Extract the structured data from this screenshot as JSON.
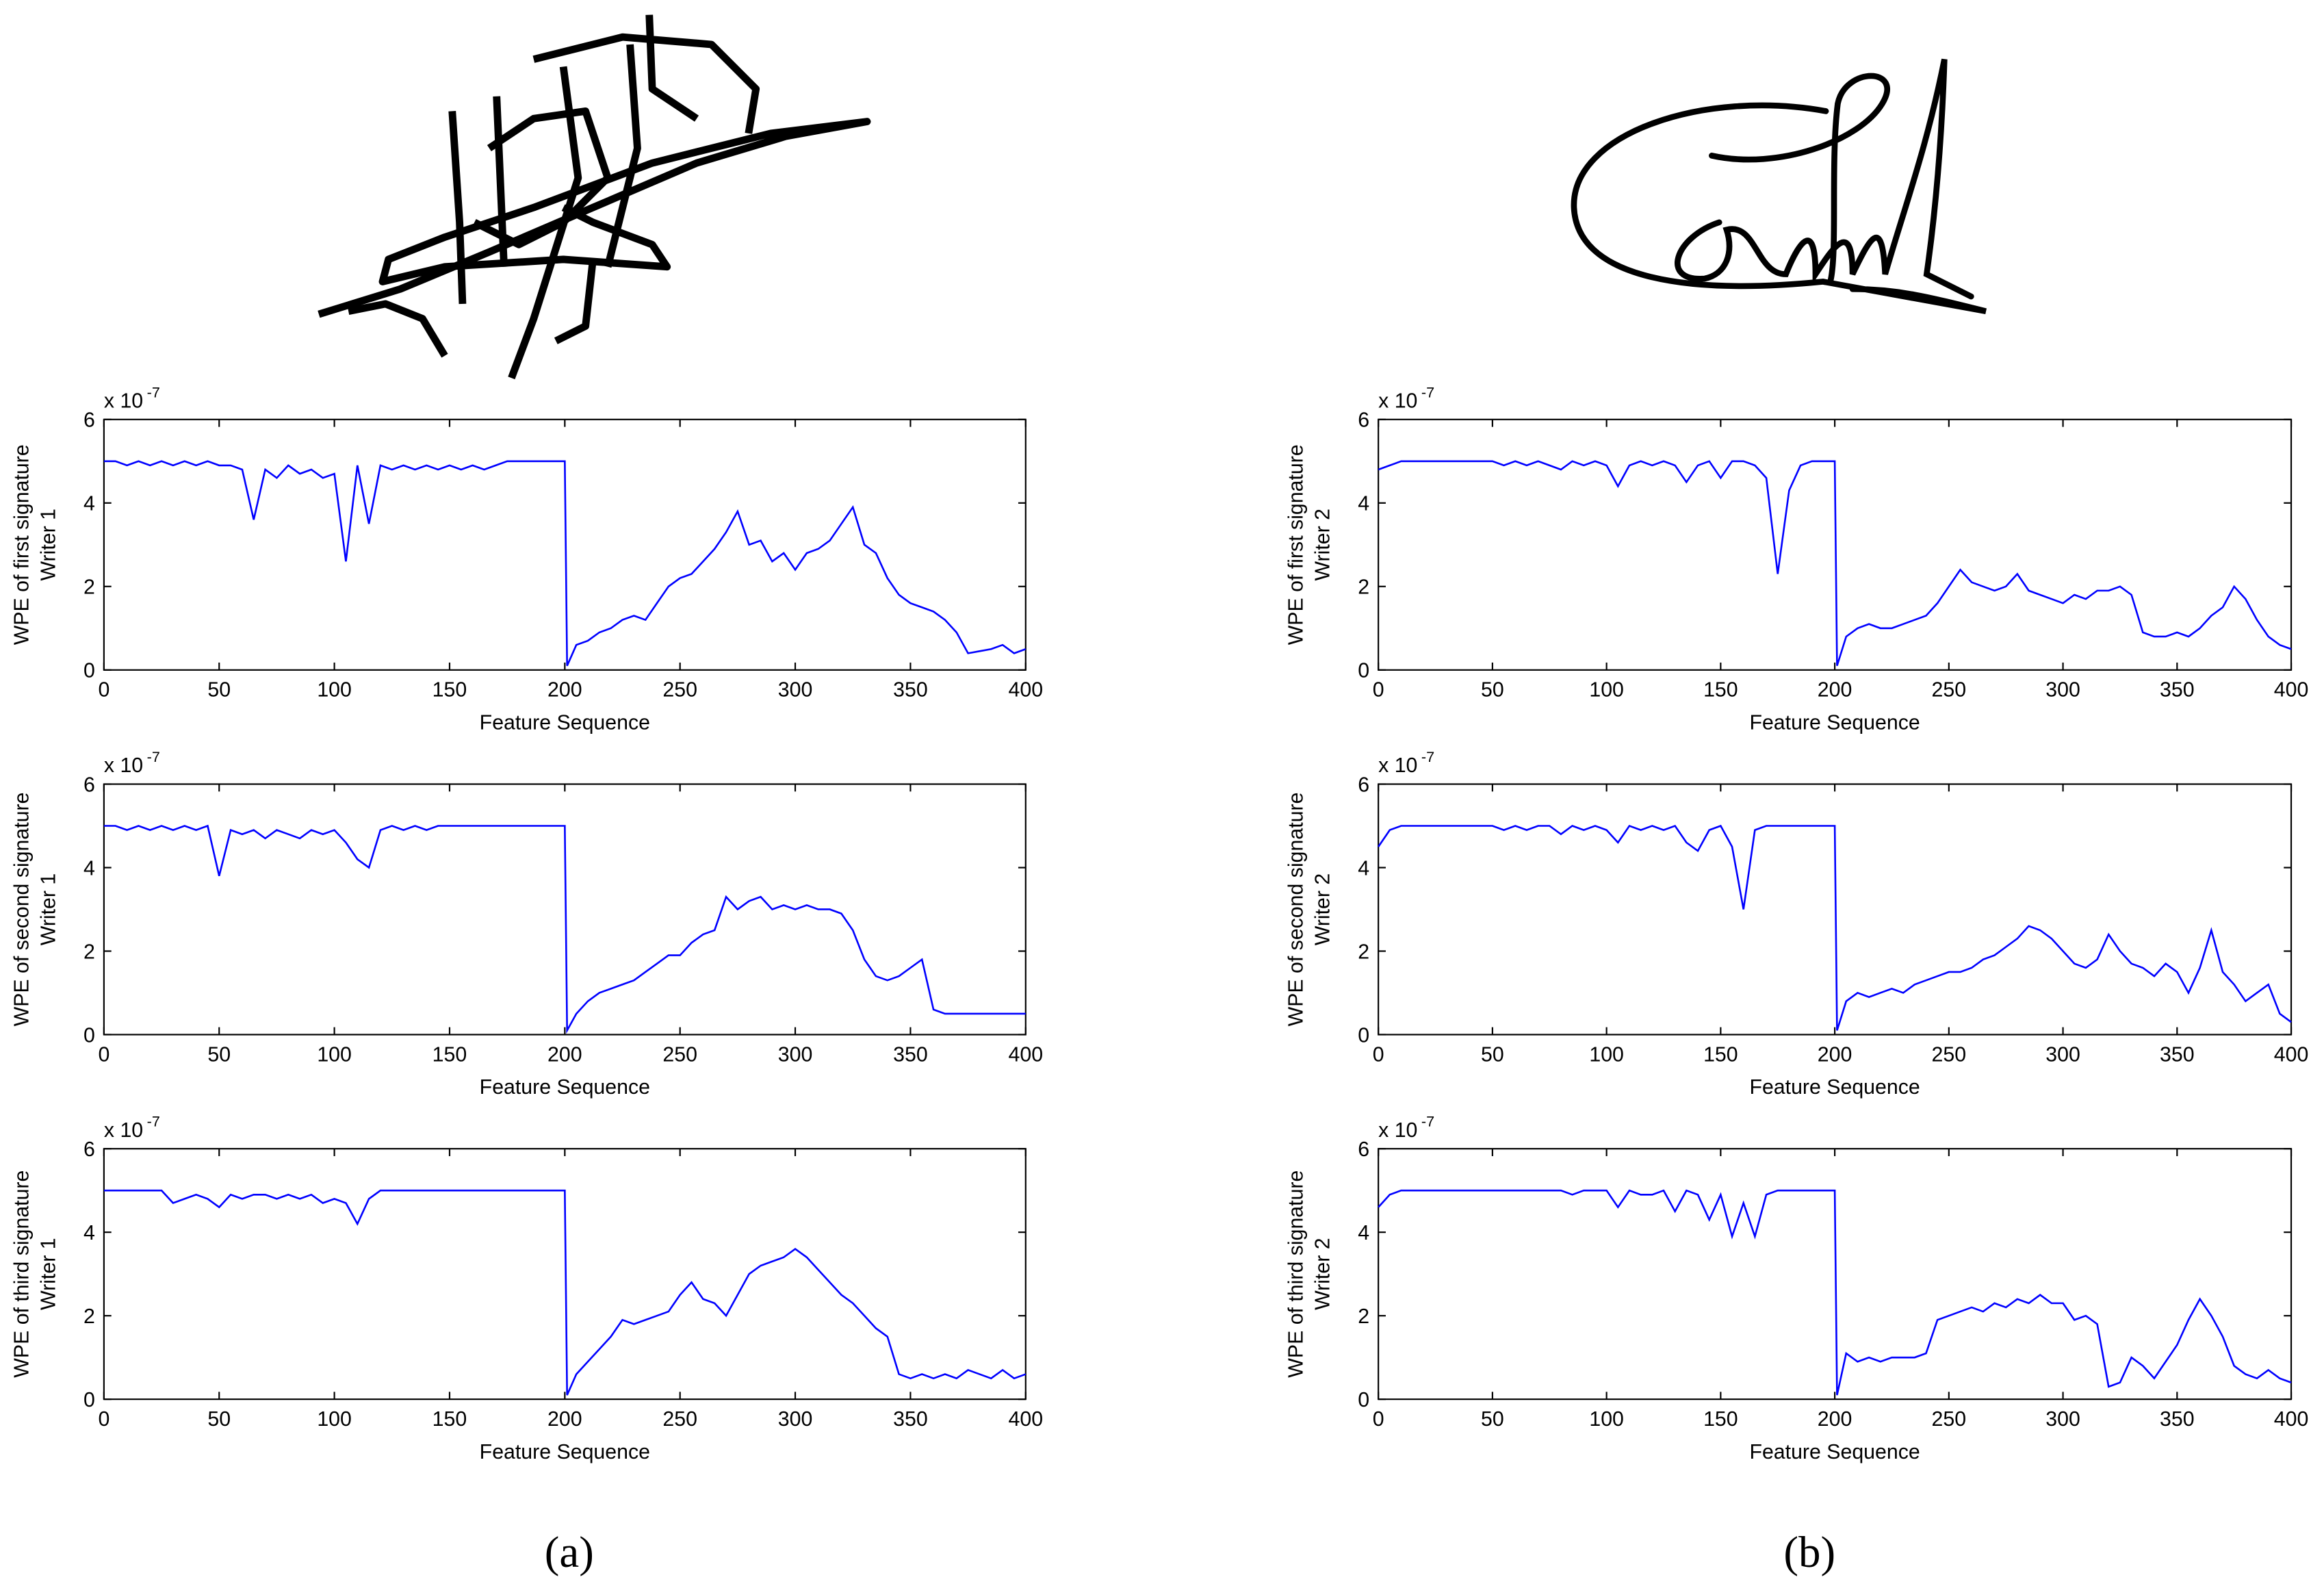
{
  "chart_data": [
    {
      "type": "line",
      "color": "#0000ff",
      "y_label": [
        "WPE  of first signature",
        "Writer 1"
      ],
      "x_label": "Feature Sequence",
      "y_scale_label": "x 10",
      "y_scale_exponent": "-7",
      "xlim": [
        0,
        400
      ],
      "ylim": [
        0,
        6
      ],
      "xticks": [
        0,
        50,
        100,
        150,
        200,
        250,
        300,
        350,
        400
      ],
      "yticks": [
        0,
        2,
        4,
        6
      ],
      "x": [
        0,
        5,
        10,
        15,
        20,
        25,
        30,
        35,
        40,
        45,
        50,
        55,
        60,
        65,
        70,
        75,
        80,
        85,
        90,
        95,
        100,
        105,
        110,
        115,
        120,
        125,
        130,
        135,
        140,
        145,
        150,
        155,
        160,
        165,
        170,
        175,
        180,
        185,
        190,
        195,
        200,
        201,
        205,
        210,
        215,
        220,
        225,
        230,
        235,
        240,
        245,
        250,
        255,
        260,
        265,
        270,
        275,
        280,
        285,
        290,
        295,
        300,
        305,
        310,
        315,
        320,
        325,
        330,
        335,
        340,
        345,
        350,
        355,
        360,
        365,
        370,
        375,
        380,
        385,
        390,
        395,
        400
      ],
      "values": [
        5,
        5,
        4.9,
        5,
        4.9,
        5,
        4.9,
        5,
        4.9,
        5,
        4.9,
        4.9,
        4.8,
        3.6,
        4.8,
        4.6,
        4.9,
        4.7,
        4.8,
        4.6,
        4.7,
        2.6,
        4.9,
        3.5,
        4.9,
        4.8,
        4.9,
        4.8,
        4.9,
        4.8,
        4.9,
        4.8,
        4.9,
        4.8,
        4.9,
        5,
        5,
        5,
        5,
        5,
        5,
        0.1,
        0.6,
        0.7,
        0.9,
        1.0,
        1.2,
        1.3,
        1.2,
        1.6,
        2.0,
        2.2,
        2.3,
        2.6,
        2.9,
        3.3,
        3.8,
        3.0,
        3.1,
        2.6,
        2.8,
        2.4,
        2.8,
        2.9,
        3.1,
        3.5,
        3.9,
        3.0,
        2.8,
        2.2,
        1.8,
        1.6,
        1.5,
        1.4,
        1.2,
        0.9,
        0.4,
        0.45,
        0.5,
        0.6,
        0.4,
        0.5
      ]
    },
    {
      "type": "line",
      "color": "#0000ff",
      "y_label": [
        "WPE  of first signature",
        "Writer 2"
      ],
      "x_label": "Feature Sequence",
      "y_scale_label": "x 10",
      "y_scale_exponent": "-7",
      "xlim": [
        0,
        400
      ],
      "ylim": [
        0,
        6
      ],
      "xticks": [
        0,
        50,
        100,
        150,
        200,
        250,
        300,
        350,
        400
      ],
      "yticks": [
        0,
        2,
        4,
        6
      ],
      "x": [
        0,
        5,
        10,
        15,
        20,
        25,
        30,
        35,
        40,
        45,
        50,
        55,
        60,
        65,
        70,
        75,
        80,
        85,
        90,
        95,
        100,
        105,
        110,
        115,
        120,
        125,
        130,
        135,
        140,
        145,
        150,
        155,
        160,
        165,
        170,
        175,
        180,
        185,
        190,
        195,
        200,
        201,
        205,
        210,
        215,
        220,
        225,
        230,
        235,
        240,
        245,
        250,
        255,
        260,
        265,
        270,
        275,
        280,
        285,
        290,
        295,
        300,
        305,
        310,
        315,
        320,
        325,
        330,
        335,
        340,
        345,
        350,
        355,
        360,
        365,
        370,
        375,
        380,
        385,
        390,
        395,
        400
      ],
      "values": [
        4.8,
        4.9,
        5,
        5,
        5,
        5,
        5,
        5,
        5,
        5,
        5,
        4.9,
        5,
        4.9,
        5,
        4.9,
        4.8,
        5,
        4.9,
        5,
        4.9,
        4.4,
        4.9,
        5,
        4.9,
        5,
        4.9,
        4.5,
        4.9,
        5,
        4.6,
        5,
        5,
        4.9,
        4.6,
        2.3,
        4.3,
        4.9,
        5,
        5,
        5,
        0.1,
        0.8,
        1.0,
        1.1,
        1.0,
        1.0,
        1.1,
        1.2,
        1.3,
        1.6,
        2.0,
        2.4,
        2.1,
        2.0,
        1.9,
        2.0,
        2.3,
        1.9,
        1.8,
        1.7,
        1.6,
        1.8,
        1.7,
        1.9,
        1.9,
        2.0,
        1.8,
        0.9,
        0.8,
        0.8,
        0.9,
        0.8,
        1.0,
        1.3,
        1.5,
        2.0,
        1.7,
        1.2,
        0.8,
        0.6,
        0.5
      ]
    },
    {
      "type": "line",
      "color": "#0000ff",
      "y_label": [
        "WPE of second signature",
        "Writer 1"
      ],
      "x_label": "Feature Sequence",
      "y_scale_label": "x 10",
      "y_scale_exponent": "-7",
      "xlim": [
        0,
        400
      ],
      "ylim": [
        0,
        6
      ],
      "xticks": [
        0,
        50,
        100,
        150,
        200,
        250,
        300,
        350,
        400
      ],
      "yticks": [
        0,
        2,
        4,
        6
      ],
      "x": [
        0,
        5,
        10,
        15,
        20,
        25,
        30,
        35,
        40,
        45,
        50,
        55,
        60,
        65,
        70,
        75,
        80,
        85,
        90,
        95,
        100,
        105,
        110,
        115,
        120,
        125,
        130,
        135,
        140,
        145,
        150,
        155,
        160,
        165,
        170,
        175,
        180,
        185,
        190,
        195,
        200,
        201,
        205,
        210,
        215,
        220,
        225,
        230,
        235,
        240,
        245,
        250,
        255,
        260,
        265,
        270,
        275,
        280,
        285,
        290,
        295,
        300,
        305,
        310,
        315,
        320,
        325,
        330,
        335,
        340,
        345,
        350,
        355,
        360,
        365,
        370,
        375,
        380,
        385,
        390,
        395,
        400
      ],
      "values": [
        5,
        5,
        4.9,
        5,
        4.9,
        5,
        4.9,
        5,
        4.9,
        5,
        3.8,
        4.9,
        4.8,
        4.9,
        4.7,
        4.9,
        4.8,
        4.7,
        4.9,
        4.8,
        4.9,
        4.6,
        4.2,
        4.0,
        4.9,
        5,
        4.9,
        5,
        4.9,
        5,
        5,
        5,
        5,
        5,
        5,
        5,
        5,
        5,
        5,
        5,
        5,
        0.1,
        0.5,
        0.8,
        1.0,
        1.1,
        1.2,
        1.3,
        1.5,
        1.7,
        1.9,
        1.9,
        2.2,
        2.4,
        2.5,
        3.3,
        3.0,
        3.2,
        3.3,
        3.0,
        3.1,
        3.0,
        3.1,
        3.0,
        3.0,
        2.9,
        2.5,
        1.8,
        1.4,
        1.3,
        1.4,
        1.6,
        1.8,
        0.6,
        0.5,
        0.5,
        0.5,
        0.5,
        0.5,
        0.5,
        0.5,
        0.5
      ]
    },
    {
      "type": "line",
      "color": "#0000ff",
      "y_label": [
        "WPE  of second signature",
        "Writer 2"
      ],
      "x_label": "Feature Sequence",
      "y_scale_label": "x 10",
      "y_scale_exponent": "-7",
      "xlim": [
        0,
        400
      ],
      "ylim": [
        0,
        6
      ],
      "xticks": [
        0,
        50,
        100,
        150,
        200,
        250,
        300,
        350,
        400
      ],
      "yticks": [
        0,
        2,
        4,
        6
      ],
      "x": [
        0,
        5,
        10,
        15,
        20,
        25,
        30,
        35,
        40,
        45,
        50,
        55,
        60,
        65,
        70,
        75,
        80,
        85,
        90,
        95,
        100,
        105,
        110,
        115,
        120,
        125,
        130,
        135,
        140,
        145,
        150,
        155,
        160,
        165,
        170,
        175,
        180,
        185,
        190,
        195,
        200,
        201,
        205,
        210,
        215,
        220,
        225,
        230,
        235,
        240,
        245,
        250,
        255,
        260,
        265,
        270,
        275,
        280,
        285,
        290,
        295,
        300,
        305,
        310,
        315,
        320,
        325,
        330,
        335,
        340,
        345,
        350,
        355,
        360,
        365,
        370,
        375,
        380,
        385,
        390,
        395,
        400
      ],
      "values": [
        4.5,
        4.9,
        5,
        5,
        5,
        5,
        5,
        5,
        5,
        5,
        5,
        4.9,
        5,
        4.9,
        5,
        5,
        4.8,
        5,
        4.9,
        5,
        4.9,
        4.6,
        5,
        4.9,
        5,
        4.9,
        5,
        4.6,
        4.4,
        4.9,
        5,
        4.5,
        3.0,
        4.9,
        5,
        5,
        5,
        5,
        5,
        5,
        5,
        0.1,
        0.8,
        1.0,
        0.9,
        1.0,
        1.1,
        1.0,
        1.2,
        1.3,
        1.4,
        1.5,
        1.5,
        1.6,
        1.8,
        1.9,
        2.1,
        2.3,
        2.6,
        2.5,
        2.3,
        2.0,
        1.7,
        1.6,
        1.8,
        2.4,
        2.0,
        1.7,
        1.6,
        1.4,
        1.7,
        1.5,
        1.0,
        1.6,
        2.5,
        1.5,
        1.2,
        0.8,
        1.0,
        1.2,
        0.5,
        0.3
      ]
    },
    {
      "type": "line",
      "color": "#0000ff",
      "y_label": [
        "WPE  of third signature",
        "Writer 1"
      ],
      "x_label": "Feature Sequence",
      "y_scale_label": "x 10",
      "y_scale_exponent": "-7",
      "xlim": [
        0,
        400
      ],
      "ylim": [
        0,
        6
      ],
      "xticks": [
        0,
        50,
        100,
        150,
        200,
        250,
        300,
        350,
        400
      ],
      "yticks": [
        0,
        2,
        4,
        6
      ],
      "x": [
        0,
        5,
        10,
        15,
        20,
        25,
        30,
        35,
        40,
        45,
        50,
        55,
        60,
        65,
        70,
        75,
        80,
        85,
        90,
        95,
        100,
        105,
        110,
        115,
        120,
        125,
        130,
        135,
        140,
        145,
        150,
        155,
        160,
        165,
        170,
        175,
        180,
        185,
        190,
        195,
        200,
        201,
        205,
        210,
        215,
        220,
        225,
        230,
        235,
        240,
        245,
        250,
        255,
        260,
        265,
        270,
        275,
        280,
        285,
        290,
        295,
        300,
        305,
        310,
        315,
        320,
        325,
        330,
        335,
        340,
        345,
        350,
        355,
        360,
        365,
        370,
        375,
        380,
        385,
        390,
        395,
        400
      ],
      "values": [
        5,
        5,
        5,
        5,
        5,
        5,
        4.7,
        4.8,
        4.9,
        4.8,
        4.6,
        4.9,
        4.8,
        4.9,
        4.9,
        4.8,
        4.9,
        4.8,
        4.9,
        4.7,
        4.8,
        4.7,
        4.2,
        4.8,
        5,
        5,
        5,
        5,
        5,
        5,
        5,
        5,
        5,
        5,
        5,
        5,
        5,
        5,
        5,
        5,
        5,
        0.1,
        0.6,
        0.9,
        1.2,
        1.5,
        1.9,
        1.8,
        1.9,
        2.0,
        2.1,
        2.5,
        2.8,
        2.4,
        2.3,
        2.0,
        2.5,
        3.0,
        3.2,
        3.3,
        3.4,
        3.6,
        3.4,
        3.1,
        2.8,
        2.5,
        2.3,
        2.0,
        1.7,
        1.5,
        0.6,
        0.5,
        0.6,
        0.5,
        0.6,
        0.5,
        0.7,
        0.6,
        0.5,
        0.7,
        0.5,
        0.6
      ]
    },
    {
      "type": "line",
      "color": "#0000ff",
      "y_label": [
        "WPE  of third signature",
        "Writer 2"
      ],
      "x_label": "Feature Sequence",
      "y_scale_label": "x 10",
      "y_scale_exponent": "-7",
      "xlim": [
        0,
        400
      ],
      "ylim": [
        0,
        6
      ],
      "xticks": [
        0,
        50,
        100,
        150,
        200,
        250,
        300,
        350,
        400
      ],
      "yticks": [
        0,
        2,
        4,
        6
      ],
      "x": [
        0,
        5,
        10,
        15,
        20,
        25,
        30,
        35,
        40,
        45,
        50,
        55,
        60,
        65,
        70,
        75,
        80,
        85,
        90,
        95,
        100,
        105,
        110,
        115,
        120,
        125,
        130,
        135,
        140,
        145,
        150,
        155,
        160,
        165,
        170,
        175,
        180,
        185,
        190,
        195,
        200,
        201,
        205,
        210,
        215,
        220,
        225,
        230,
        235,
        240,
        245,
        250,
        255,
        260,
        265,
        270,
        275,
        280,
        285,
        290,
        295,
        300,
        305,
        310,
        315,
        320,
        325,
        330,
        335,
        340,
        345,
        350,
        355,
        360,
        365,
        370,
        375,
        380,
        385,
        390,
        395,
        400
      ],
      "values": [
        4.6,
        4.9,
        5,
        5,
        5,
        5,
        5,
        5,
        5,
        5,
        5,
        5,
        5,
        5,
        5,
        5,
        5,
        4.9,
        5,
        5,
        5,
        4.6,
        5,
        4.9,
        4.9,
        5,
        4.5,
        5,
        4.9,
        4.3,
        4.9,
        3.9,
        4.7,
        3.9,
        4.9,
        5,
        5,
        5,
        5,
        5,
        5,
        0.1,
        1.1,
        0.9,
        1.0,
        0.9,
        1.0,
        1.0,
        1.0,
        1.1,
        1.9,
        2.0,
        2.1,
        2.2,
        2.1,
        2.3,
        2.2,
        2.4,
        2.3,
        2.5,
        2.3,
        2.3,
        1.9,
        2.0,
        1.8,
        0.3,
        0.4,
        1.0,
        0.8,
        0.5,
        0.9,
        1.3,
        1.9,
        2.4,
        2.0,
        1.5,
        0.8,
        0.6,
        0.5,
        0.7,
        0.5,
        0.4
      ]
    }
  ],
  "panel_labels": [
    "(a)",
    "(b)"
  ]
}
